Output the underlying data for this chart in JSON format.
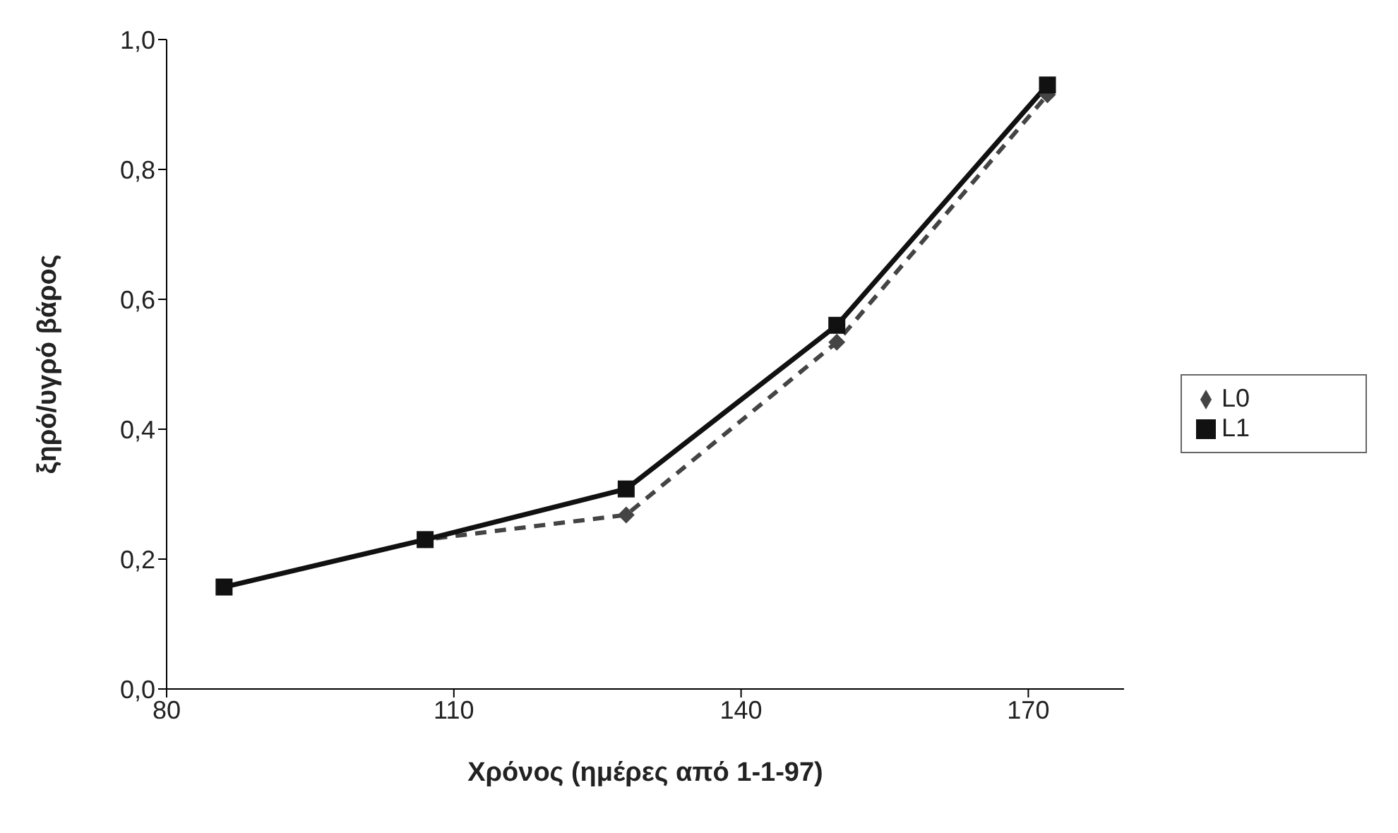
{
  "chart_data": {
    "type": "line",
    "xlabel": "Χρόνος (ημέρες από 1-1-97)",
    "ylabel": "ξηρό/υγρό βάρος",
    "x": [
      86,
      107,
      128,
      150,
      172
    ],
    "series": [
      {
        "name": "L0",
        "color": "#444444",
        "values": [
          0.157,
          0.23,
          0.268,
          0.534,
          0.915
        ],
        "marker": "diamond",
        "line_style": "dashed"
      },
      {
        "name": "L1",
        "color": "#111111",
        "values": [
          0.157,
          0.23,
          0.308,
          0.56,
          0.93
        ],
        "marker": "square",
        "line_style": "solid"
      }
    ],
    "xlim": [
      80,
      180
    ],
    "xticks": [
      80,
      110,
      140,
      170
    ],
    "ylim": [
      0,
      1
    ],
    "yticks": [
      {
        "value": 0,
        "label": "0,0"
      },
      {
        "value": 0.2,
        "label": "0,2"
      },
      {
        "value": 0.4,
        "label": "0,4"
      },
      {
        "value": 0.6,
        "label": "0,6"
      },
      {
        "value": 0.8,
        "label": "0,8"
      },
      {
        "value": 1,
        "label": "1,0"
      }
    ],
    "grid": false,
    "legend": "right"
  }
}
